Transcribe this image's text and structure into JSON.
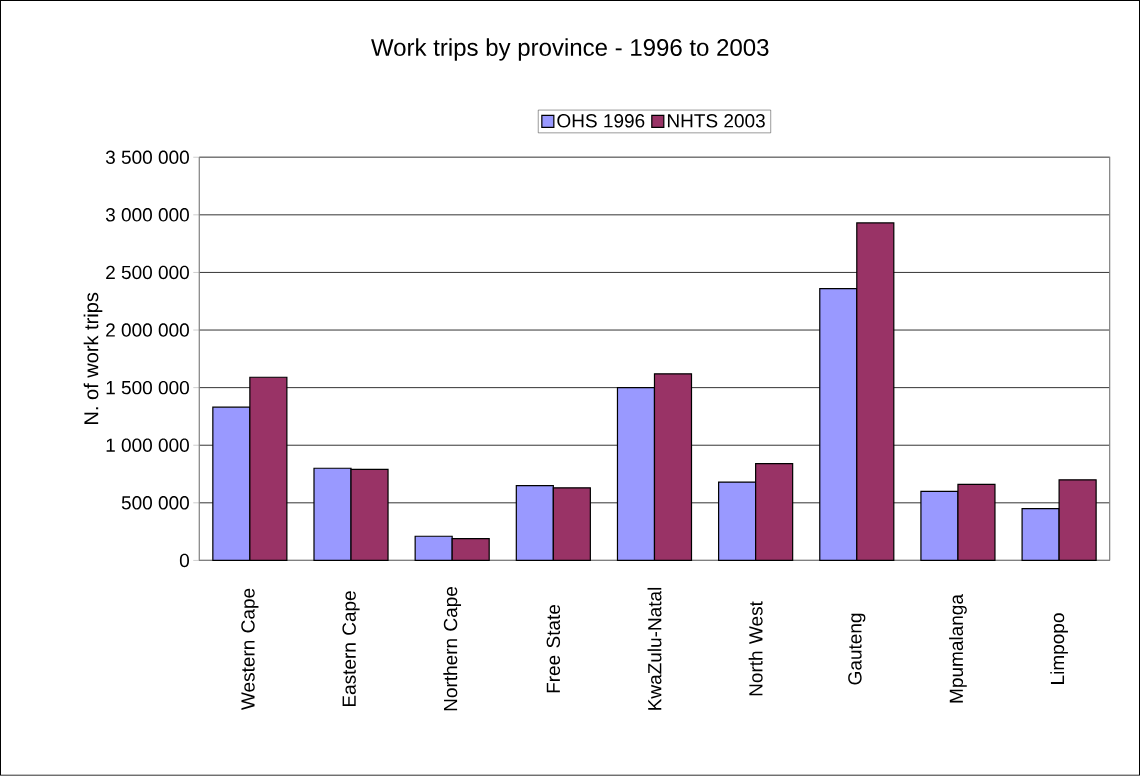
{
  "chart_data": {
    "type": "bar",
    "title": "Work trips by province - 1996 to 2003",
    "ylabel": "N. of work trips",
    "categories": [
      "Western Cape",
      "Eastern Cape",
      "Northern Cape",
      "Free State",
      "KwaZulu-Natal",
      "North West",
      "Gauteng",
      "Mpumalanga",
      "Limpopo"
    ],
    "series": [
      {
        "name": "OHS 1996",
        "color": "#9999ff",
        "values": [
          1330000,
          800000,
          210000,
          650000,
          1500000,
          680000,
          2360000,
          600000,
          450000
        ]
      },
      {
        "name": "NHTS 2003",
        "color": "#993366",
        "values": [
          1590000,
          790000,
          190000,
          630000,
          1620000,
          840000,
          2930000,
          660000,
          700000
        ]
      }
    ],
    "ylim": [
      0,
      3500000
    ],
    "yticks": [
      0,
      {
        "value": 500000,
        "label": "500 000"
      },
      {
        "value": 1000000,
        "label": "1 000 000"
      },
      {
        "value": 1500000,
        "label": "1 500 000"
      },
      {
        "value": 2000000,
        "label": "2 000 000"
      },
      {
        "value": 2500000,
        "label": "2 500 000"
      },
      {
        "value": 3000000,
        "label": "3 000 000"
      },
      {
        "value": 3500000,
        "label": "3 500 000"
      }
    ],
    "grid": "y",
    "legend": "top"
  }
}
